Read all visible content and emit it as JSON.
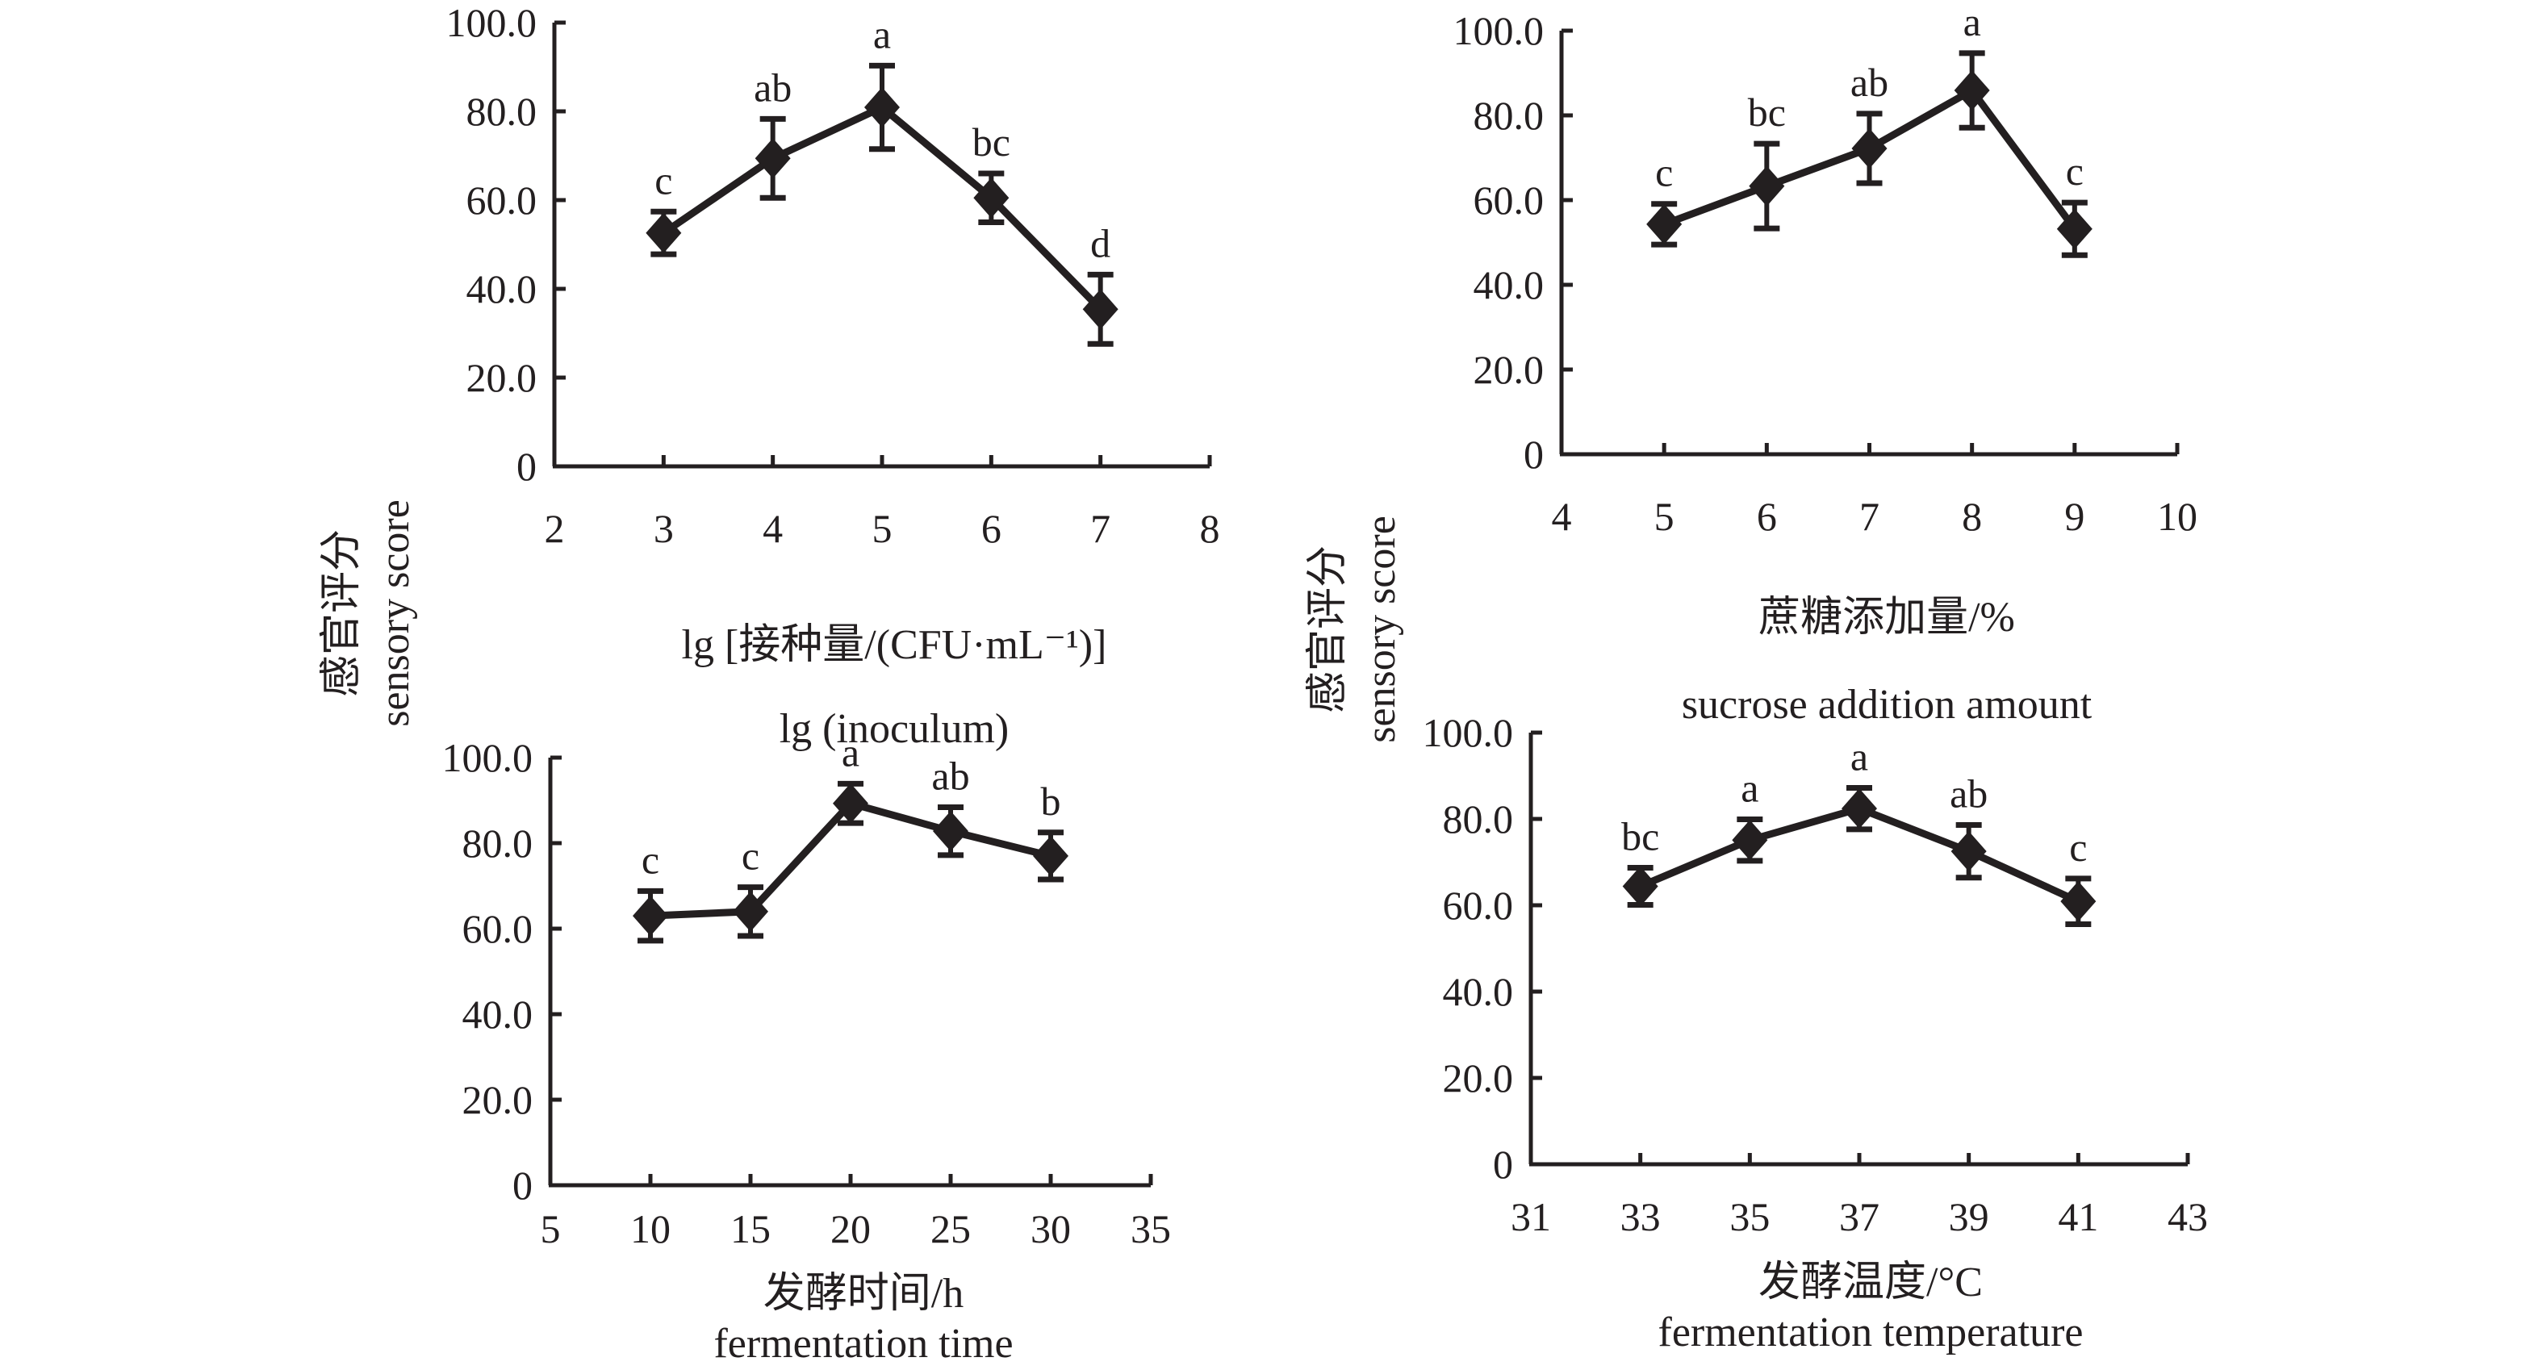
{
  "figure": {
    "y_axis_title_cn": "感官评分",
    "y_axis_title_en": "sensory score",
    "colors": {
      "ink": "#231f20",
      "background": "#ffffff"
    }
  },
  "chart_data": [
    {
      "id": "inoculum",
      "type": "line",
      "title": "",
      "xlabel_cn": "lg [接种量/(CFU·mL⁻¹)]",
      "xlabel_en": "lg (inoculum)",
      "ylabel": "感官评分 sensory score",
      "xlim": [
        2,
        8
      ],
      "ylim": [
        0,
        100
      ],
      "xticks": [
        "2",
        "3",
        "4",
        "5",
        "6",
        "7",
        "8"
      ],
      "yticks": [
        "0",
        "20.0",
        "40.0",
        "60.0",
        "80.0",
        "100.0"
      ],
      "grid": false,
      "x": [
        3,
        4,
        5,
        6,
        7
      ],
      "values": [
        52.6,
        69.4,
        80.9,
        60.5,
        35.4
      ],
      "errors": [
        4.8,
        8.9,
        9.4,
        5.5,
        7.8
      ],
      "significance": [
        "c",
        "ab",
        "a",
        "bc",
        "d"
      ],
      "marker": "diamond"
    },
    {
      "id": "sucrose",
      "type": "line",
      "title": "",
      "xlabel_cn": "蔗糖添加量/%",
      "xlabel_en": "sucrose addition amount",
      "ylabel": "感官评分 sensory score",
      "xlim": [
        4,
        10
      ],
      "ylim": [
        0,
        100
      ],
      "xticks": [
        "4",
        "5",
        "6",
        "7",
        "8",
        "9",
        "10"
      ],
      "yticks": [
        "0",
        "20.0",
        "40.0",
        "60.0",
        "80.0",
        "100.0"
      ],
      "grid": false,
      "x": [
        5,
        6,
        7,
        8,
        9
      ],
      "values": [
        54.3,
        63.3,
        72.2,
        85.9,
        53.2
      ],
      "errors": [
        4.8,
        10.0,
        8.2,
        8.8,
        6.2
      ],
      "significance": [
        "c",
        "bc",
        "ab",
        "a",
        "c"
      ],
      "marker": "diamond"
    },
    {
      "id": "time",
      "type": "line",
      "title": "",
      "xlabel_cn": "发酵时间/h",
      "xlabel_en": "fermentation time",
      "ylabel": "",
      "xlim": [
        5,
        35
      ],
      "ylim": [
        0,
        100
      ],
      "xticks": [
        "5",
        "10",
        "15",
        "20",
        "25",
        "30",
        "35"
      ],
      "yticks": [
        "0",
        "20.0",
        "40.0",
        "60.0",
        "80.0",
        "100.0"
      ],
      "grid": false,
      "x": [
        10,
        15,
        20,
        25,
        30
      ],
      "values": [
        63.0,
        64.0,
        89.3,
        82.8,
        77.0
      ],
      "errors": [
        5.8,
        5.7,
        4.6,
        5.6,
        5.5
      ],
      "significance": [
        "c",
        "c",
        "a",
        "ab",
        "b"
      ],
      "marker": "diamond"
    },
    {
      "id": "temperature",
      "type": "line",
      "title": "",
      "xlabel_cn": "发酵温度/°C",
      "xlabel_en": "fermentation temperature",
      "ylabel": "",
      "xlim": [
        31,
        43
      ],
      "ylim": [
        0,
        100
      ],
      "xticks": [
        "31",
        "33",
        "35",
        "37",
        "39",
        "41",
        "43"
      ],
      "yticks": [
        "0",
        "20.0",
        "40.0",
        "60.0",
        "80.0",
        "100.0"
      ],
      "grid": false,
      "x": [
        33,
        35,
        37,
        39,
        41
      ],
      "values": [
        64.4,
        75.1,
        82.4,
        72.5,
        60.9
      ],
      "errors": [
        4.3,
        4.8,
        4.8,
        6.1,
        5.3
      ],
      "significance": [
        "bc",
        "a",
        "a",
        "ab",
        "c"
      ],
      "marker": "diamond"
    }
  ]
}
